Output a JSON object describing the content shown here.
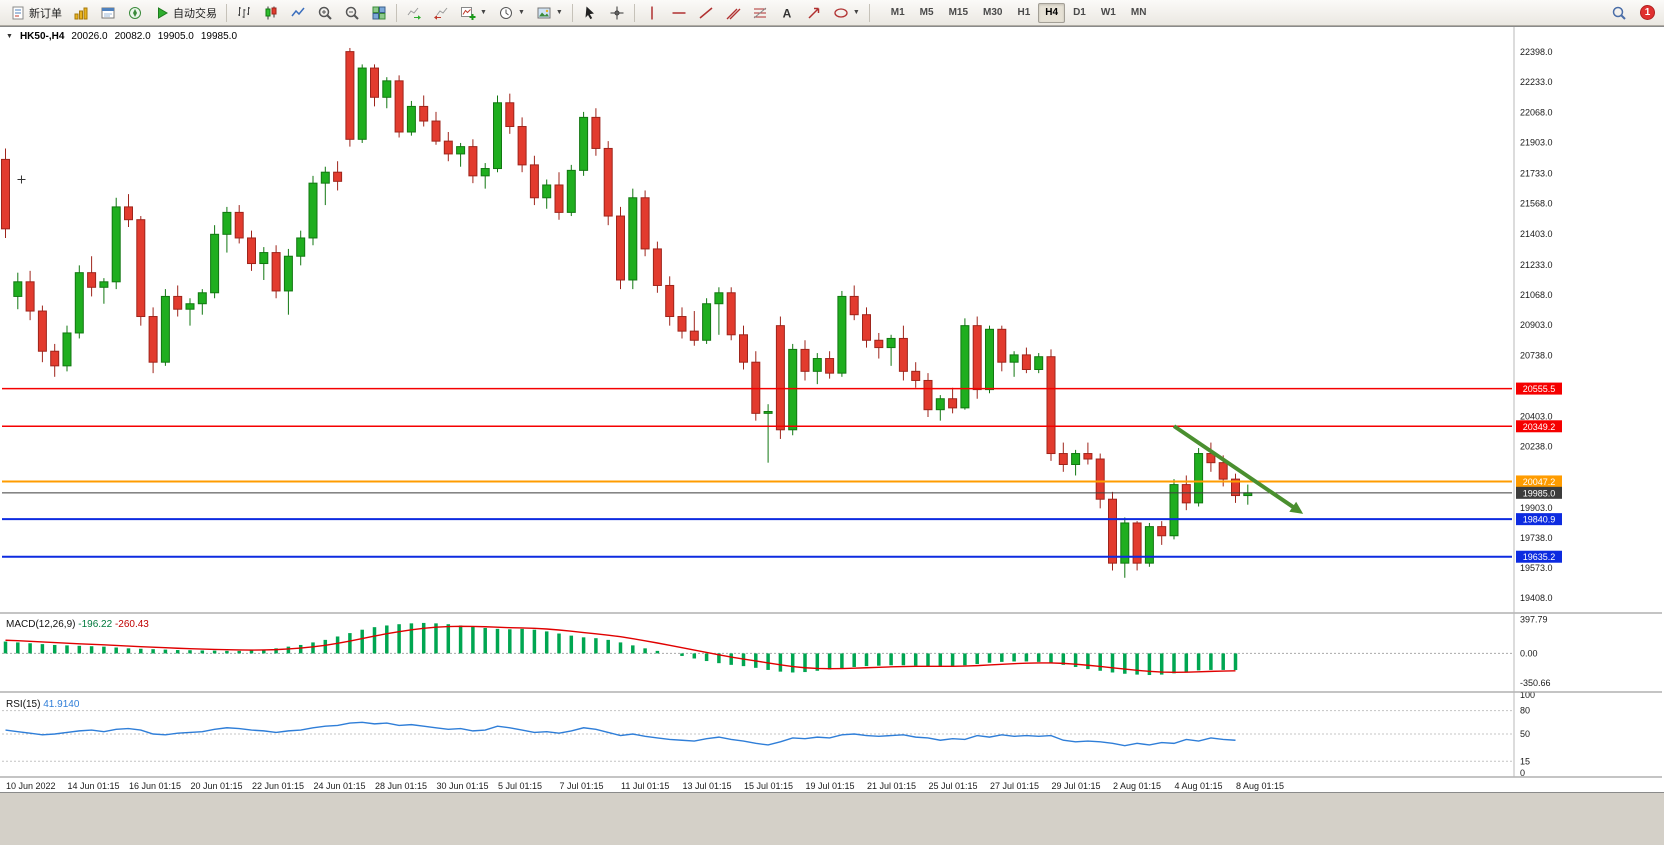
{
  "toolbar": {
    "new_order_label": "新订单",
    "auto_trading_label": "自动交易",
    "timeframes": [
      "M1",
      "M5",
      "M15",
      "M30",
      "H1",
      "H4",
      "D1",
      "W1",
      "MN"
    ],
    "active_timeframe": "H4",
    "badge_count": "1",
    "icons": [
      "new-order",
      "market-watch",
      "data-window",
      "navigator",
      "auto-trading-play",
      "bar-chart",
      "candlestick-chart",
      "line-chart",
      "zoom-in",
      "zoom-out",
      "tile-windows",
      "auto-scroll",
      "chart-shift",
      "new-chart",
      "periods",
      "templates",
      "cursor",
      "crosshair",
      "vertical-line",
      "horizontal-line",
      "trendline",
      "equidistant-channel",
      "fibonacci",
      "text-label",
      "arrow-tool",
      "shapes",
      "search",
      "notification"
    ]
  },
  "chart_header": {
    "collapse_icon": "▼",
    "symbol": "HK50-,H4",
    "open": "20026.0",
    "high": "20082.0",
    "low": "19905.0",
    "close": "19985.0"
  },
  "chart_data": {
    "type": "candlestick",
    "title": "HK50- H4 chart with MACD and RSI",
    "symbol": "HK50-",
    "timeframe": "H4",
    "main": {
      "ylim": [
        19360,
        22480
      ],
      "grid": false,
      "price_ticks": [
        "22398.0",
        "22233.0",
        "22068.0",
        "21903.0",
        "21733.0",
        "21568.0",
        "21403.0",
        "21233.0",
        "21068.0",
        "20903.0",
        "20738.0",
        "20403.0",
        "20238.0",
        "19903.0",
        "19738.0",
        "19573.0",
        "19408.0"
      ],
      "colors": {
        "up": "#1fae1f",
        "up_border": "#117711",
        "down": "#e23b2e",
        "down_border": "#9e241b",
        "wick": "#444444"
      },
      "levels": [
        {
          "label": "20555.5",
          "price": 20555.5,
          "color": "#f50000",
          "width": 1.5
        },
        {
          "label": "20349.2",
          "price": 20349.2,
          "color": "#f50000",
          "width": 1.5
        },
        {
          "label": "20047.2",
          "price": 20047.2,
          "color": "#ff9c00",
          "width": 2
        },
        {
          "label": "19985.0",
          "price": 19985.0,
          "color": "#3c3c3c",
          "width": 1
        },
        {
          "label": "19840.9",
          "price": 19840.9,
          "color": "#0d2be0",
          "width": 2
        },
        {
          "label": "19635.2",
          "price": 19635.2,
          "color": "#0d2be0",
          "width": 2
        }
      ],
      "trend_arrow": {
        "from_index": 95,
        "from_price": 20350,
        "to_index": 105.5,
        "to_price": 19870,
        "color": "#4a8f2f"
      },
      "cross_marker": {
        "index": 1.3,
        "price": 21700
      },
      "candles": [
        [
          21810,
          21870,
          21380,
          21430
        ],
        [
          21060,
          21190,
          20990,
          21140
        ],
        [
          21140,
          21200,
          20930,
          20980
        ],
        [
          20980,
          21010,
          20700,
          20760
        ],
        [
          20760,
          20800,
          20620,
          20680
        ],
        [
          20680,
          20900,
          20650,
          20860
        ],
        [
          20860,
          21230,
          20830,
          21190
        ],
        [
          21190,
          21280,
          21060,
          21110
        ],
        [
          21110,
          21160,
          21020,
          21140
        ],
        [
          21140,
          21600,
          21100,
          21550
        ],
        [
          21550,
          21620,
          21440,
          21480
        ],
        [
          21480,
          21500,
          20900,
          20950
        ],
        [
          20950,
          21000,
          20640,
          20700
        ],
        [
          20700,
          21100,
          20680,
          21060
        ],
        [
          21060,
          21120,
          20950,
          20990
        ],
        [
          20990,
          21050,
          20900,
          21020
        ],
        [
          21020,
          21100,
          20960,
          21080
        ],
        [
          21080,
          21450,
          21050,
          21400
        ],
        [
          21400,
          21550,
          21300,
          21520
        ],
        [
          21520,
          21560,
          21350,
          21380
        ],
        [
          21380,
          21420,
          21200,
          21240
        ],
        [
          21240,
          21330,
          21150,
          21300
        ],
        [
          21300,
          21340,
          21050,
          21090
        ],
        [
          21090,
          21320,
          20960,
          21280
        ],
        [
          21280,
          21420,
          21230,
          21380
        ],
        [
          21380,
          21720,
          21340,
          21680
        ],
        [
          21680,
          21770,
          21560,
          21740
        ],
        [
          21740,
          21800,
          21640,
          21690
        ],
        [
          22400,
          22420,
          21880,
          21920
        ],
        [
          21920,
          22330,
          21900,
          22310
        ],
        [
          22310,
          22330,
          22100,
          22150
        ],
        [
          22150,
          22260,
          22090,
          22240
        ],
        [
          22240,
          22270,
          21930,
          21960
        ],
        [
          21960,
          22130,
          21940,
          22100
        ],
        [
          22100,
          22160,
          21990,
          22020
        ],
        [
          22020,
          22070,
          21890,
          21910
        ],
        [
          21910,
          21960,
          21800,
          21840
        ],
        [
          21840,
          21900,
          21770,
          21880
        ],
        [
          21880,
          21920,
          21680,
          21720
        ],
        [
          21720,
          21790,
          21650,
          21760
        ],
        [
          21760,
          22160,
          21740,
          22120
        ],
        [
          22120,
          22170,
          21950,
          21990
        ],
        [
          21990,
          22040,
          21740,
          21780
        ],
        [
          21780,
          21830,
          21560,
          21600
        ],
        [
          21600,
          21700,
          21540,
          21670
        ],
        [
          21670,
          21740,
          21480,
          21520
        ],
        [
          21520,
          21780,
          21500,
          21750
        ],
        [
          21750,
          22070,
          21720,
          22040
        ],
        [
          22040,
          22090,
          21830,
          21870
        ],
        [
          21870,
          21910,
          21450,
          21500
        ],
        [
          21500,
          21550,
          21100,
          21150
        ],
        [
          21150,
          21650,
          21100,
          21600
        ],
        [
          21600,
          21640,
          21280,
          21320
        ],
        [
          21320,
          21360,
          21080,
          21120
        ],
        [
          21120,
          21170,
          20900,
          20950
        ],
        [
          20950,
          21000,
          20830,
          20870
        ],
        [
          20870,
          20980,
          20790,
          20820
        ],
        [
          20820,
          21050,
          20800,
          21020
        ],
        [
          21020,
          21110,
          20850,
          21080
        ],
        [
          21080,
          21110,
          20820,
          20850
        ],
        [
          20850,
          20900,
          20660,
          20700
        ],
        [
          20700,
          20760,
          20380,
          20420
        ],
        [
          20420,
          20470,
          20150,
          20430
        ],
        [
          20900,
          20950,
          20280,
          20330
        ],
        [
          20330,
          20800,
          20300,
          20770
        ],
        [
          20770,
          20820,
          20600,
          20650
        ],
        [
          20650,
          20750,
          20580,
          20720
        ],
        [
          20720,
          20760,
          20610,
          20640
        ],
        [
          20640,
          21090,
          20620,
          21060
        ],
        [
          21060,
          21120,
          20930,
          20960
        ],
        [
          20960,
          21000,
          20780,
          20820
        ],
        [
          20820,
          20860,
          20720,
          20780
        ],
        [
          20780,
          20850,
          20680,
          20830
        ],
        [
          20830,
          20900,
          20600,
          20650
        ],
        [
          20650,
          20700,
          20560,
          20600
        ],
        [
          20600,
          20640,
          20400,
          20440
        ],
        [
          20440,
          20520,
          20380,
          20500
        ],
        [
          20500,
          20560,
          20420,
          20450
        ],
        [
          20450,
          20940,
          20440,
          20900
        ],
        [
          20900,
          20950,
          20500,
          20550
        ],
        [
          20550,
          20900,
          20530,
          20880
        ],
        [
          20880,
          20900,
          20650,
          20700
        ],
        [
          20700,
          20760,
          20620,
          20740
        ],
        [
          20740,
          20780,
          20640,
          20660
        ],
        [
          20660,
          20750,
          20640,
          20730
        ],
        [
          20730,
          20770,
          20160,
          20200
        ],
        [
          20200,
          20260,
          20100,
          20140
        ],
        [
          20140,
          20220,
          20080,
          20200
        ],
        [
          20200,
          20260,
          20140,
          20170
        ],
        [
          20170,
          20200,
          19900,
          19950
        ],
        [
          19950,
          19990,
          19560,
          19600
        ],
        [
          19600,
          19850,
          19520,
          19820
        ],
        [
          19820,
          19830,
          19560,
          19600
        ],
        [
          19600,
          19820,
          19580,
          19800
        ],
        [
          19800,
          19830,
          19700,
          19750
        ],
        [
          19750,
          20060,
          19730,
          20030
        ],
        [
          20030,
          20080,
          19890,
          19930
        ],
        [
          19930,
          20230,
          19910,
          20200
        ],
        [
          20200,
          20260,
          20100,
          20150
        ],
        [
          20150,
          20190,
          20020,
          20060
        ],
        [
          20060,
          20090,
          19930,
          19970
        ],
        [
          19970,
          20030,
          19920,
          19985
        ]
      ]
    },
    "macd": {
      "label": "MACD(12,26,9)",
      "value_main": "-196.22",
      "value_signal": "-260.43",
      "ticks": [
        "397.79",
        "0.00",
        "-350.66"
      ],
      "ylim": [
        -420,
        430
      ],
      "colors": {
        "histogram": "#00a651",
        "signal": "#e00000"
      },
      "histogram": [
        140,
        130,
        120,
        110,
        100,
        95,
        90,
        85,
        80,
        70,
        60,
        55,
        50,
        45,
        40,
        38,
        35,
        33,
        30,
        30,
        35,
        45,
        60,
        80,
        100,
        130,
        160,
        200,
        240,
        280,
        310,
        330,
        345,
        355,
        360,
        355,
        345,
        330,
        315,
        300,
        290,
        285,
        290,
        280,
        260,
        235,
        210,
        190,
        180,
        160,
        130,
        95,
        60,
        30,
        0,
        -30,
        -60,
        -90,
        -115,
        -135,
        -150,
        -170,
        -195,
        -215,
        -225,
        -220,
        -205,
        -190,
        -175,
        -160,
        -150,
        -145,
        -140,
        -140,
        -145,
        -150,
        -155,
        -150,
        -140,
        -125,
        -110,
        -100,
        -95,
        -95,
        -100,
        -115,
        -135,
        -160,
        -185,
        -205,
        -225,
        -240,
        -250,
        -255,
        -250,
        -235,
        -215,
        -200,
        -195,
        -195,
        -196
      ]
    },
    "rsi": {
      "label": "RSI(15)",
      "value": "41.9140",
      "ticks": [
        "100",
        "80",
        "50",
        "15",
        "0"
      ],
      "guide_levels": [
        80,
        50,
        15
      ],
      "ylim": [
        0,
        100
      ],
      "color": "#2f7ed8",
      "line": [
        55,
        53,
        51,
        49,
        50,
        52,
        54,
        55,
        53,
        56,
        57,
        55,
        50,
        49,
        51,
        52,
        53,
        56,
        58,
        57,
        55,
        54,
        52,
        54,
        55,
        58,
        60,
        61,
        64,
        65,
        63,
        64,
        61,
        62,
        60,
        58,
        56,
        57,
        54,
        55,
        60,
        58,
        55,
        52,
        53,
        51,
        54,
        58,
        56,
        52,
        48,
        50,
        47,
        45,
        43,
        42,
        41,
        44,
        46,
        43,
        41,
        38,
        36,
        40,
        45,
        44,
        46,
        45,
        49,
        50,
        48,
        47,
        48,
        49,
        46,
        45,
        42,
        44,
        43,
        48,
        46,
        49,
        47,
        48,
        47,
        48,
        42,
        40,
        41,
        40,
        38,
        35,
        38,
        36,
        39,
        38,
        43,
        41,
        45,
        43,
        42
      ]
    },
    "time_labels": [
      "10 Jun 2022",
      "14 Jun 01:15",
      "16 Jun 01:15",
      "20 Jun 01:15",
      "22 Jun 01:15",
      "24 Jun 01:15",
      "28 Jun 01:15",
      "30 Jun 01:15",
      "5 Jul 01:15",
      "7 Jul 01:15",
      "11 Jul 01:15",
      "13 Jul 01:15",
      "15 Jul 01:15",
      "19 Jul 01:15",
      "21 Jul 01:15",
      "25 Jul 01:15",
      "27 Jul 01:15",
      "29 Jul 01:15",
      "2 Aug 01:15",
      "4 Aug 01:15",
      "8 Aug 01:15"
    ]
  }
}
